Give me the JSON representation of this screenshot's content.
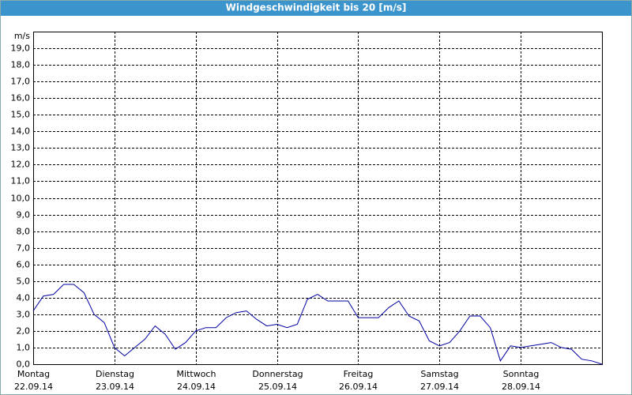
{
  "chart_data": {
    "type": "line",
    "title": "Windgeschwindigkeit bis 20 [m/s]",
    "y_unit": "m/s",
    "x": [
      0,
      3,
      6,
      9,
      12,
      15,
      18,
      21,
      24,
      27,
      30,
      33,
      36,
      39,
      42,
      45,
      48,
      51,
      54,
      57,
      60,
      63,
      66,
      69,
      72,
      75,
      78,
      81,
      84,
      87,
      90,
      93,
      96,
      99,
      102,
      105,
      108,
      111,
      114,
      117,
      120,
      123,
      126,
      129,
      132,
      135,
      138,
      141,
      144,
      147,
      150,
      153,
      156,
      159,
      162,
      165,
      168
    ],
    "series": [
      {
        "name": "Windgeschwindigkeit",
        "color": "#0000a0",
        "values": [
          3.2,
          4.1,
          4.2,
          4.8,
          4.8,
          4.3,
          3.0,
          2.5,
          1.0,
          0.5,
          1.0,
          1.5,
          2.3,
          1.8,
          0.9,
          1.3,
          2.0,
          2.2,
          2.2,
          2.8,
          3.1,
          3.2,
          2.7,
          2.3,
          2.4,
          2.2,
          2.4,
          3.9,
          4.2,
          3.8,
          3.8,
          3.8,
          2.8,
          2.8,
          2.8,
          3.4,
          3.8,
          2.9,
          2.6,
          1.4,
          1.1,
          1.3,
          2.0,
          2.9,
          2.9,
          2.2,
          0.2,
          1.1,
          1.0,
          1.1,
          1.2,
          1.3,
          1.0,
          0.9,
          0.3,
          0.2,
          0.0
        ]
      }
    ],
    "xlim": [
      0,
      168
    ],
    "xticks": [
      {
        "value": 0,
        "label": "Montag"
      },
      {
        "value": 24,
        "label": "Dienstag"
      },
      {
        "value": 48,
        "label": "Mittwoch"
      },
      {
        "value": 72,
        "label": "Donnerstag"
      },
      {
        "value": 96,
        "label": "Freitag"
      },
      {
        "value": 120,
        "label": "Samstag"
      },
      {
        "value": 144,
        "label": "Sonntag"
      }
    ],
    "xtick_dates": [
      "22.09.14",
      "23.09.14",
      "24.09.14",
      "25.09.14",
      "26.09.14",
      "27.09.14",
      "28.09.14"
    ],
    "ylim": [
      0,
      20
    ],
    "yticks": [
      {
        "value": 0,
        "label": "0,0"
      },
      {
        "value": 1,
        "label": "1,0"
      },
      {
        "value": 2,
        "label": "2,0"
      },
      {
        "value": 3,
        "label": "3,0"
      },
      {
        "value": 4,
        "label": "4,0"
      },
      {
        "value": 5,
        "label": "5,0"
      },
      {
        "value": 6,
        "label": "6,0"
      },
      {
        "value": 7,
        "label": "7,0"
      },
      {
        "value": 8,
        "label": "8,0"
      },
      {
        "value": 9,
        "label": "9,0"
      },
      {
        "value": 10,
        "label": "10,0"
      },
      {
        "value": 11,
        "label": "11,0"
      },
      {
        "value": 12,
        "label": "12,0"
      },
      {
        "value": 13,
        "label": "13,0"
      },
      {
        "value": 14,
        "label": "14,0"
      },
      {
        "value": 15,
        "label": "15,0"
      },
      {
        "value": 16,
        "label": "16,0"
      },
      {
        "value": 17,
        "label": "17,0"
      },
      {
        "value": 18,
        "label": "18,0"
      },
      {
        "value": 19,
        "label": "19,0"
      }
    ],
    "grid": true
  }
}
